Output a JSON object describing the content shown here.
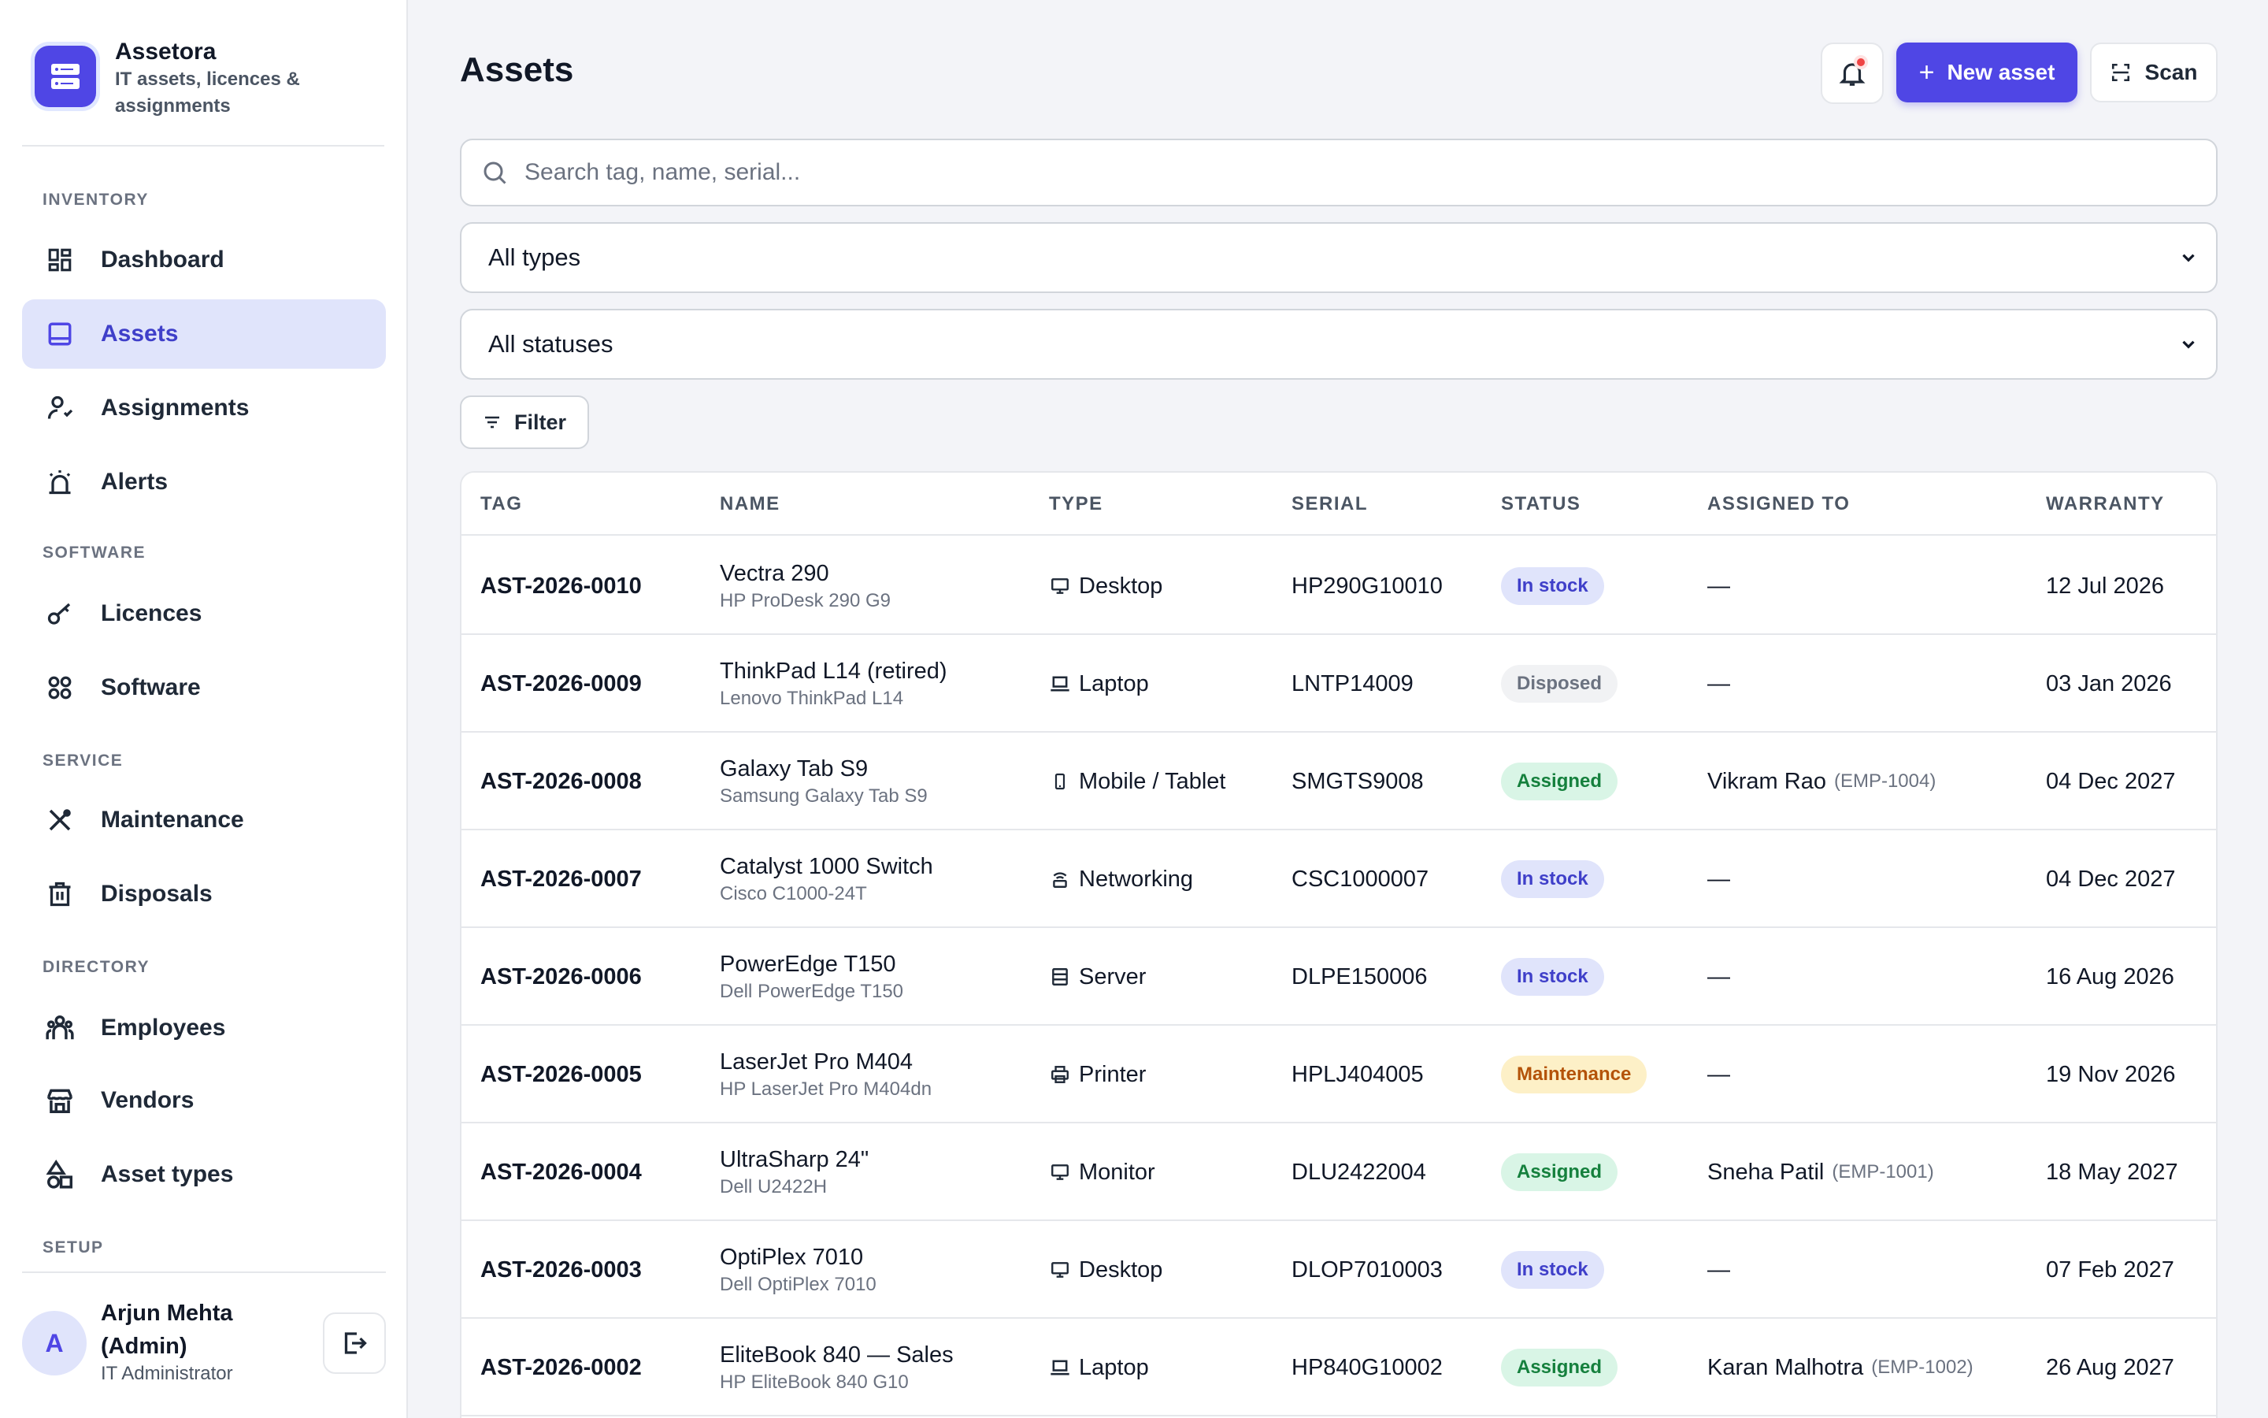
{
  "brand": {
    "name": "Assetora",
    "subtitle": "IT assets, licences & assignments"
  },
  "nav": {
    "sections": {
      "inventory": "INVENTORY",
      "software": "SOFTWARE",
      "service": "SERVICE",
      "directory": "DIRECTORY",
      "setup": "SETUP"
    },
    "items": {
      "dashboard": "Dashboard",
      "assets": "Assets",
      "assignments": "Assignments",
      "alerts": "Alerts",
      "licences": "Licences",
      "software": "Software",
      "maintenance": "Maintenance",
      "disposals": "Disposals",
      "employees": "Employees",
      "vendors": "Vendors",
      "asset_types": "Asset types"
    },
    "active": "assets",
    "active_color": "#4f46e5"
  },
  "user": {
    "initial": "A",
    "name": "Arjun Mehta (Admin)",
    "role": "IT Administrator"
  },
  "header": {
    "title": "Assets",
    "new_label": "New asset",
    "scan_label": "Scan",
    "notification_dot": true
  },
  "search": {
    "placeholder": "Search tag, name, serial..."
  },
  "filters": {
    "type_value": "All types",
    "status_value": "All statuses",
    "filter_label": "Filter"
  },
  "table": {
    "headers": {
      "tag": "TAG",
      "name": "NAME",
      "type": "TYPE",
      "serial": "SERIAL",
      "status": "STATUS",
      "assigned": "ASSIGNED TO",
      "warranty": "WARRANTY"
    },
    "status_styles": {
      "In stock": {
        "bg": "#e0e4fb",
        "fg": "#3f3fc9"
      },
      "Disposed": {
        "bg": "#f1f2f4",
        "fg": "#6b7280"
      },
      "Assigned": {
        "bg": "#d9f5e6",
        "fg": "#15803d"
      },
      "Maintenance": {
        "bg": "#fdf0c7",
        "fg": "#b45309"
      }
    },
    "rows": [
      {
        "tag": "AST-2026-0010",
        "name": "Vectra 290",
        "model": "HP ProDesk 290 G9",
        "type": "Desktop",
        "type_icon": "desktop-icon",
        "serial": "HP290G10010",
        "status": "In stock",
        "assigned": "—",
        "emp": "",
        "warranty": "12 Jul 2026"
      },
      {
        "tag": "AST-2026-0009",
        "name": "ThinkPad L14 (retired)",
        "model": "Lenovo ThinkPad L14",
        "type": "Laptop",
        "type_icon": "laptop-icon",
        "serial": "LNTP14009",
        "status": "Disposed",
        "assigned": "—",
        "emp": "",
        "warranty": "03 Jan 2026"
      },
      {
        "tag": "AST-2026-0008",
        "name": "Galaxy Tab S9",
        "model": "Samsung Galaxy Tab S9",
        "type": "Mobile / Tablet",
        "type_icon": "mobile-icon",
        "serial": "SMGTS9008",
        "status": "Assigned",
        "assigned": "Vikram Rao",
        "emp": "(EMP-1004)",
        "warranty": "04 Dec 2027"
      },
      {
        "tag": "AST-2026-0007",
        "name": "Catalyst 1000 Switch",
        "model": "Cisco C1000-24T",
        "type": "Networking",
        "type_icon": "router-icon",
        "serial": "CSC1000007",
        "status": "In stock",
        "assigned": "—",
        "emp": "",
        "warranty": "04 Dec 2027"
      },
      {
        "tag": "AST-2026-0006",
        "name": "PowerEdge T150",
        "model": "Dell PowerEdge T150",
        "type": "Server",
        "type_icon": "server-icon",
        "serial": "DLPE150006",
        "status": "In stock",
        "assigned": "—",
        "emp": "",
        "warranty": "16 Aug 2026"
      },
      {
        "tag": "AST-2026-0005",
        "name": "LaserJet Pro M404",
        "model": "HP LaserJet Pro M404dn",
        "type": "Printer",
        "type_icon": "printer-icon",
        "serial": "HPLJ404005",
        "status": "Maintenance",
        "assigned": "—",
        "emp": "",
        "warranty": "19 Nov 2026"
      },
      {
        "tag": "AST-2026-0004",
        "name": "UltraSharp 24\"",
        "model": "Dell U2422H",
        "type": "Monitor",
        "type_icon": "monitor-icon",
        "serial": "DLU2422004",
        "status": "Assigned",
        "assigned": "Sneha Patil",
        "emp": "(EMP-1001)",
        "warranty": "18 May 2027"
      },
      {
        "tag": "AST-2026-0003",
        "name": "OptiPlex 7010",
        "model": "Dell OptiPlex 7010",
        "type": "Desktop",
        "type_icon": "desktop-icon",
        "serial": "DLOP7010003",
        "status": "In stock",
        "assigned": "—",
        "emp": "",
        "warranty": "07 Feb 2027"
      },
      {
        "tag": "AST-2026-0002",
        "name": "EliteBook 840 — Sales",
        "model": "HP EliteBook 840 G10",
        "type": "Laptop",
        "type_icon": "laptop-icon",
        "serial": "HP840G10002",
        "status": "Assigned",
        "assigned": "Karan Malhotra",
        "emp": "(EMP-1002)",
        "warranty": "26 Aug 2027"
      }
    ]
  }
}
